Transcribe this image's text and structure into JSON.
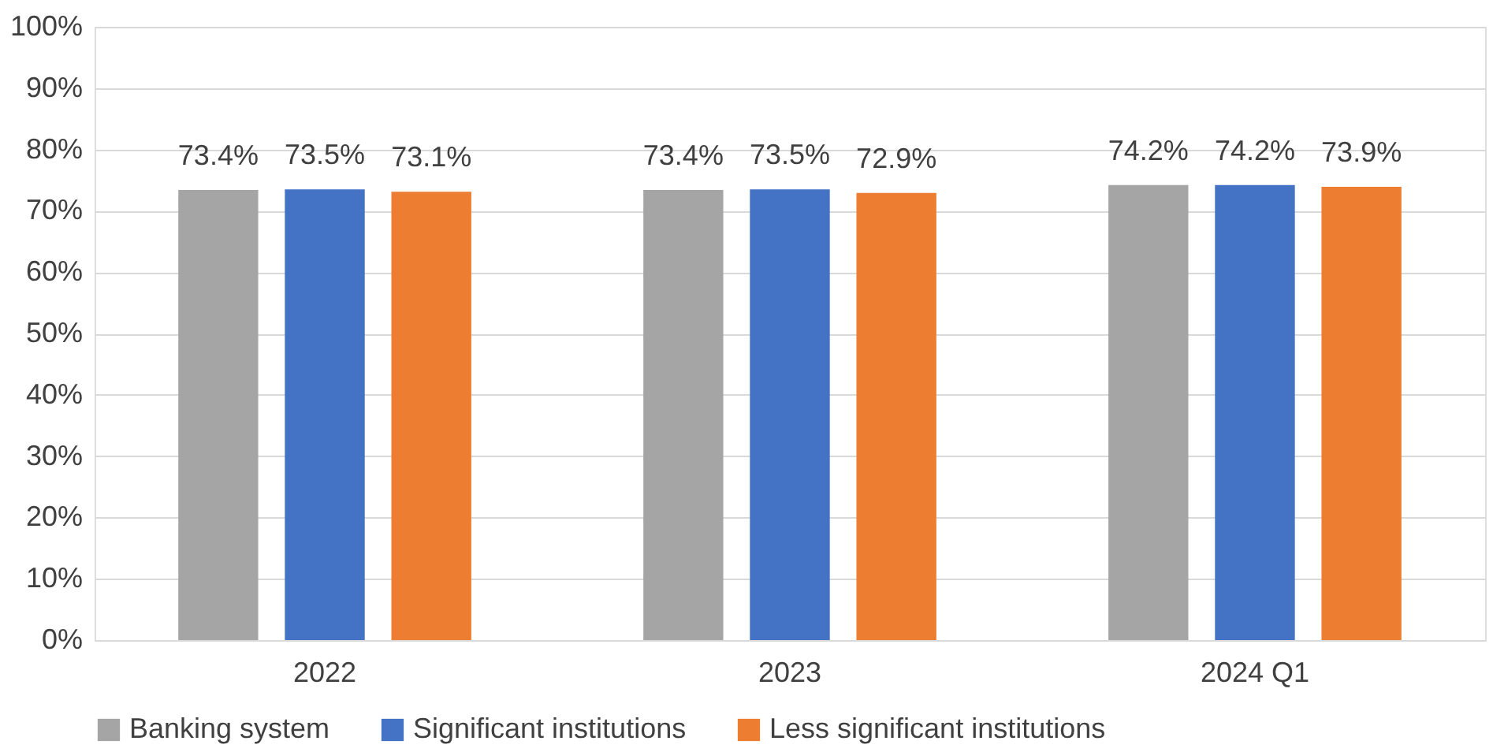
{
  "chart_data": {
    "type": "bar",
    "categories": [
      "2022",
      "2023",
      "2024 Q1"
    ],
    "series": [
      {
        "name": "Banking system",
        "color": "#a5a5a5",
        "values": [
          73.4,
          73.4,
          74.2
        ],
        "value_labels": [
          "73.4%",
          "73.4%",
          "74.2%"
        ]
      },
      {
        "name": "Significant institutions",
        "color": "#4472c4",
        "values": [
          73.5,
          73.5,
          74.2
        ],
        "value_labels": [
          "73.5%",
          "73.5%",
          "74.2%"
        ]
      },
      {
        "name": "Less significant institutions",
        "color": "#ed7d31",
        "values": [
          73.1,
          72.9,
          73.9
        ],
        "value_labels": [
          "73.1%",
          "72.9%",
          "73.9%"
        ]
      }
    ],
    "ylim": [
      0,
      100
    ],
    "yticks": [
      {
        "value": 0,
        "label": "0%"
      },
      {
        "value": 10,
        "label": "10%"
      },
      {
        "value": 20,
        "label": "20%"
      },
      {
        "value": 30,
        "label": "30%"
      },
      {
        "value": 40,
        "label": "40%"
      },
      {
        "value": 50,
        "label": "50%"
      },
      {
        "value": 60,
        "label": "60%"
      },
      {
        "value": 70,
        "label": "70%"
      },
      {
        "value": 80,
        "label": "80%"
      },
      {
        "value": 90,
        "label": "90%"
      },
      {
        "value": 100,
        "label": "100%"
      }
    ],
    "grid": "y",
    "legend": "bottom"
  }
}
